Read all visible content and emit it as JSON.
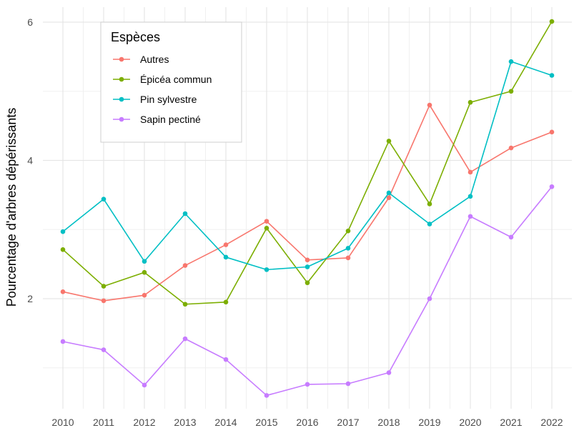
{
  "chart_data": {
    "type": "line",
    "title": "",
    "xlabel": "",
    "ylabel": "Pourcentage d'arbres dépérissants",
    "x": [
      "2010",
      "2011",
      "2012",
      "2013",
      "2014",
      "2015",
      "2016",
      "2017",
      "2018",
      "2019",
      "2020",
      "2021",
      "2022"
    ],
    "ylim": [
      0.4,
      6.25
    ],
    "yticks": [
      2,
      4,
      6
    ],
    "grid": true,
    "legend": {
      "title": "Espèces",
      "position": "top-left-inside"
    },
    "series": [
      {
        "name": "Autres",
        "color": "#f8766d",
        "values": [
          2.1,
          1.97,
          2.05,
          2.48,
          2.78,
          3.12,
          2.56,
          2.59,
          3.46,
          4.8,
          3.83,
          4.18,
          4.41
        ]
      },
      {
        "name": "Épicéa commun",
        "color": "#7cae00",
        "values": [
          2.71,
          2.18,
          2.38,
          1.92,
          1.95,
          3.02,
          2.23,
          2.98,
          4.28,
          3.37,
          4.84,
          5.0,
          6.01
        ]
      },
      {
        "name": "Pin sylvestre",
        "color": "#00bfc4",
        "values": [
          2.97,
          3.44,
          2.54,
          3.23,
          2.6,
          2.42,
          2.46,
          2.73,
          3.53,
          3.08,
          3.48,
          5.43,
          5.23
        ]
      },
      {
        "name": "Sapin pectiné",
        "color": "#c77cff",
        "values": [
          1.38,
          1.26,
          0.75,
          1.42,
          1.12,
          0.6,
          0.76,
          0.77,
          0.93,
          2.0,
          3.19,
          2.89,
          3.62
        ]
      }
    ]
  }
}
